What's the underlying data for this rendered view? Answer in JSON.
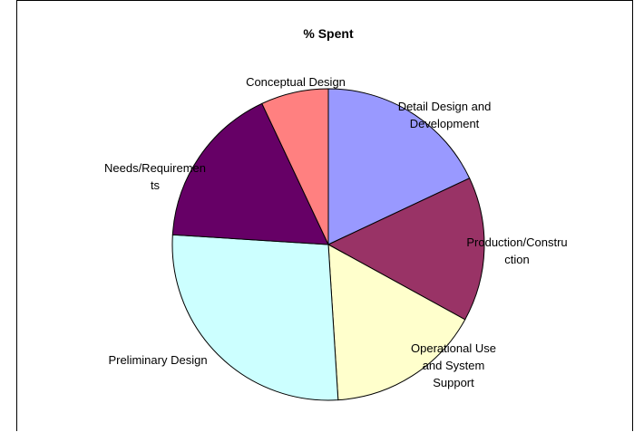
{
  "chart_data": {
    "type": "pie",
    "title": "% Spent",
    "legend": "none",
    "slices": [
      {
        "label": "Detail Design and Development",
        "label_lines": [
          "Detail Design and",
          "Development"
        ],
        "value": 18,
        "color": "#9999FF"
      },
      {
        "label": "Production/Construction",
        "label_lines": [
          "Production/Constru",
          "ction"
        ],
        "value": 15,
        "color": "#993366"
      },
      {
        "label": "Operational Use and System Support",
        "label_lines": [
          "Operational Use",
          "and System",
          "Support"
        ],
        "value": 16,
        "color": "#FFFFCC"
      },
      {
        "label": "Preliminary Design",
        "label_lines": [
          "Preliminary Design"
        ],
        "value": 27,
        "color": "#CCFFFF"
      },
      {
        "label": "Needs/Requirements",
        "label_lines": [
          "Needs/Requiremen",
          "ts"
        ],
        "value": 17,
        "color": "#660066"
      },
      {
        "label": "Conceptual Design",
        "label_lines": [
          "Conceptual Design"
        ],
        "value": 7,
        "color": "#FF8080"
      }
    ]
  }
}
